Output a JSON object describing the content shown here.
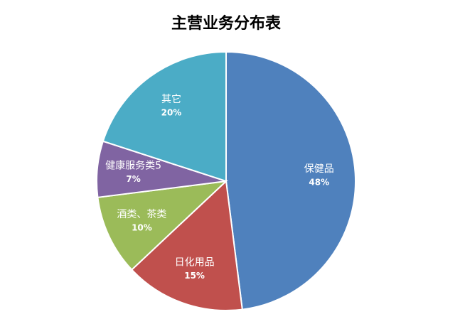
{
  "chart_data": {
    "type": "pie",
    "title": "主营业务分布表",
    "categories": [
      "保健品",
      "日化用品",
      "酒类、茶类",
      "健康服务类5",
      "其它"
    ],
    "values": [
      48,
      15,
      10,
      7,
      20
    ],
    "value_labels": [
      "48%",
      "15%",
      "10%",
      "7%",
      "20%"
    ],
    "colors": [
      "#4f81bd",
      "#c0504d",
      "#9bbb59",
      "#8064a2",
      "#4bacc6"
    ]
  }
}
